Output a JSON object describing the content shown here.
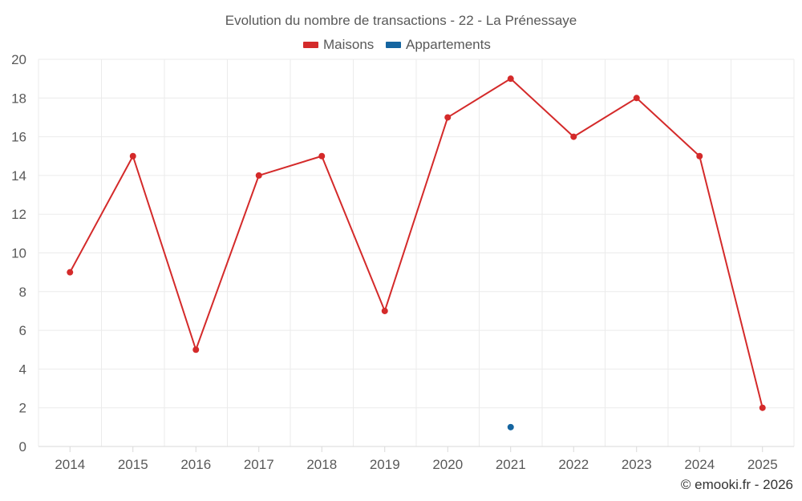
{
  "chart_data": {
    "type": "line",
    "title": "Evolution du nombre de transactions - 22 - La Prénessaye",
    "categories": [
      "2014",
      "2015",
      "2016",
      "2017",
      "2018",
      "2019",
      "2020",
      "2021",
      "2022",
      "2023",
      "2024",
      "2025"
    ],
    "series": [
      {
        "name": "Maisons",
        "color": "#d42a2a",
        "values": [
          9,
          15,
          5,
          14,
          15,
          7,
          17,
          19,
          16,
          18,
          15,
          2
        ]
      },
      {
        "name": "Appartements",
        "color": "#1565a0",
        "values": [
          null,
          null,
          null,
          null,
          null,
          null,
          null,
          1,
          null,
          null,
          null,
          null
        ]
      }
    ],
    "ylim": [
      0,
      20
    ],
    "yticks": [
      "0",
      "2",
      "4",
      "6",
      "8",
      "10",
      "12",
      "14",
      "16",
      "18",
      "20"
    ],
    "xlabel": "",
    "ylabel": "",
    "grid": true,
    "legend_position": "top-center"
  },
  "credit": "© emooki.fr - 2026"
}
